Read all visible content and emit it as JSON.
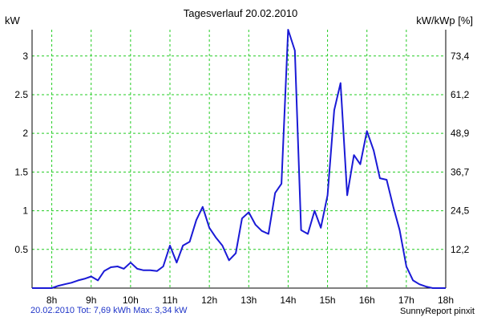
{
  "chart_data": {
    "type": "line",
    "title": "Tagesverlauf 20.02.2010",
    "ylabel_left": "kW",
    "ylabel_right": "kW/kWp [%]",
    "x_ticks": [
      "8h",
      "9h",
      "10h",
      "11h",
      "12h",
      "13h",
      "14h",
      "15h",
      "16h",
      "17h",
      "18h"
    ],
    "x_range": [
      7.5,
      18.0
    ],
    "y_ticks_left": [
      "0.5",
      "1",
      "1.5",
      "2",
      "2.5",
      "3"
    ],
    "y_tick_values_left": [
      0.5,
      1,
      1.5,
      2,
      2.5,
      3
    ],
    "y_ticks_right": [
      "12,2",
      "24,5",
      "36,7",
      "48,9",
      "61,2",
      "73,4"
    ],
    "ylim": [
      0,
      3.34
    ],
    "grid": true,
    "line_color": "#1a1ad6",
    "grid_color": "#22cc22",
    "series": [
      {
        "x": [
          7.5,
          8.0,
          8.17,
          8.33,
          8.5,
          8.67,
          8.83,
          9.0,
          9.17,
          9.33,
          9.5,
          9.67,
          9.83,
          10.0,
          10.17,
          10.33,
          10.5,
          10.67,
          10.83,
          11.0,
          11.17,
          11.33,
          11.5,
          11.67,
          11.83,
          12.0,
          12.17,
          12.33,
          12.5,
          12.67,
          12.83,
          13.0,
          13.17,
          13.33,
          13.5,
          13.67,
          13.83,
          14.0,
          14.17,
          14.33,
          14.5,
          14.67,
          14.83,
          15.0,
          15.17,
          15.33,
          15.5,
          15.67,
          15.83,
          16.0,
          16.17,
          16.33,
          16.5,
          16.67,
          16.83,
          17.0,
          17.17,
          17.33,
          17.5,
          17.67,
          17.83,
          18.0
        ],
        "values": [
          0.0,
          0.0,
          0.03,
          0.05,
          0.07,
          0.1,
          0.12,
          0.15,
          0.1,
          0.22,
          0.27,
          0.28,
          0.25,
          0.33,
          0.25,
          0.23,
          0.23,
          0.22,
          0.28,
          0.55,
          0.33,
          0.55,
          0.6,
          0.88,
          1.05,
          0.78,
          0.65,
          0.55,
          0.36,
          0.45,
          0.9,
          0.98,
          0.82,
          0.74,
          0.7,
          1.23,
          1.35,
          3.34,
          3.07,
          0.75,
          0.7,
          1.0,
          0.78,
          1.2,
          2.3,
          2.65,
          1.2,
          1.72,
          1.6,
          2.03,
          1.78,
          1.42,
          1.4,
          1.05,
          0.75,
          0.28,
          0.1,
          0.05,
          0.02,
          0.0,
          0.0,
          0.0
        ]
      }
    ]
  },
  "footer": {
    "summary": "20.02.2010 Tot: 7,69 kWh Max: 3,34 kW",
    "credit": "SunnyReport pinxit"
  }
}
